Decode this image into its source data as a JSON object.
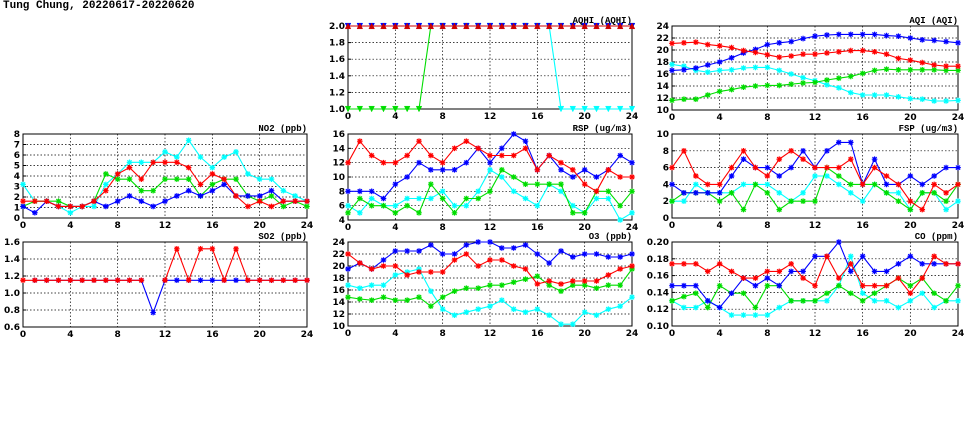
{
  "title": "Tung Chung, 20220617-20220620",
  "colors": {
    "red": "#ff0000",
    "blue": "#0000ff",
    "green": "#00dd00",
    "cyan": "#00ffff",
    "darkred": "#cc0000"
  },
  "chart_data": [
    {
      "id": "no2",
      "type": "line",
      "title": "NO2 (ppb)",
      "ylim": [
        0,
        8
      ],
      "yticks": [
        "0",
        "1",
        "2",
        "3",
        "4",
        "5",
        "6",
        "7",
        "8"
      ],
      "xlim": [
        0,
        24
      ],
      "xticks": [
        "0",
        "4",
        "8",
        "12",
        "16",
        "20",
        "24"
      ],
      "grid": true,
      "series": [
        {
          "color": "cyan",
          "x0": 0,
          "values": [
            3.2,
            1.6,
            1.6,
            1.1,
            0.5,
            1.1,
            1.1,
            3.2,
            4.2,
            5.3,
            5.3,
            5.3,
            6.3,
            5.8,
            7.4,
            5.8,
            4.8,
            5.8,
            6.3,
            4.2,
            3.7,
            3.7,
            2.6,
            2.1,
            1.6
          ]
        },
        {
          "color": "green",
          "x0": 0,
          "values": [
            1.1,
            1.6,
            1.6,
            1.6,
            1.1,
            1.1,
            1.6,
            4.2,
            3.7,
            3.7,
            2.6,
            2.6,
            3.7,
            3.7,
            3.7,
            2.1,
            3.2,
            3.7,
            3.7,
            2.1,
            1.6,
            2.1,
            1.1,
            1.6,
            1.1
          ]
        },
        {
          "color": "blue",
          "x0": 0,
          "values": [
            1.1,
            0.5,
            1.6,
            1.1,
            1.1,
            1.1,
            1.6,
            1.1,
            1.6,
            2.1,
            1.6,
            1.1,
            1.6,
            2.1,
            2.6,
            2.1,
            2.6,
            3.2,
            2.1,
            2.1,
            2.1,
            2.6,
            1.6,
            1.6,
            1.6
          ]
        },
        {
          "color": "red",
          "x0": 0,
          "values": [
            1.6,
            1.6,
            1.6,
            1.1,
            1.1,
            1.1,
            1.6,
            2.6,
            4.2,
            4.8,
            3.7,
            5.3,
            5.3,
            5.3,
            4.8,
            3.2,
            4.2,
            3.7,
            2.1,
            1.1,
            1.6,
            1.1,
            1.6,
            1.6,
            1.6
          ]
        }
      ]
    },
    {
      "id": "so2",
      "type": "line",
      "title": "SO2 (ppb)",
      "ylim": [
        0.6,
        1.6
      ],
      "yticks": [
        "0.6",
        "0.8",
        "1.0",
        "1.2",
        "1.4",
        "1.6"
      ],
      "xlim": [
        0,
        24
      ],
      "xticks": [
        "0",
        "4",
        "8",
        "12",
        "16",
        "20",
        "24"
      ],
      "grid": true,
      "series": [
        {
          "color": "blue",
          "x0": 1,
          "values": [
            1.15,
            1.15,
            1.15,
            1.15,
            1.15,
            1.15,
            1.15,
            1.15,
            1.15,
            1.15,
            0.77,
            1.15,
            1.15,
            1.15,
            1.15,
            1.15,
            1.15,
            1.15,
            1.15,
            1.15,
            1.15,
            1.15,
            1.15,
            1.15
          ]
        },
        {
          "color": "red",
          "x0": 0,
          "values": [
            1.15,
            1.15,
            1.15,
            1.15,
            1.15,
            1.15,
            1.15,
            1.15,
            1.15,
            1.15,
            1.15,
            null,
            1.15,
            1.52,
            1.15,
            1.52,
            1.52,
            1.15,
            1.52,
            1.15,
            1.15,
            1.15,
            1.15,
            1.15,
            1.15
          ]
        }
      ]
    },
    {
      "id": "aqhi",
      "type": "line",
      "title": "AQHI (AQHI)",
      "ylim": [
        1.0,
        2.0
      ],
      "yticks": [
        "1.0",
        "1.2",
        "1.4",
        "1.6",
        "1.8",
        "2.0"
      ],
      "xlim": [
        0,
        24
      ],
      "xticks": [
        "0",
        "4",
        "8",
        "12",
        "16",
        "20",
        "24"
      ],
      "grid": true,
      "series": [
        {
          "color": "green",
          "x0": 0,
          "values": [
            1,
            1,
            1,
            1,
            1,
            1,
            1,
            2,
            2,
            2,
            2,
            2,
            2,
            2,
            2,
            2,
            2,
            2,
            2,
            2,
            2,
            2,
            2,
            2,
            2
          ]
        },
        {
          "color": "cyan",
          "x0": 0,
          "values": [
            2,
            2,
            2,
            2,
            2,
            2,
            2,
            2,
            2,
            2,
            2,
            2,
            2,
            2,
            2,
            2,
            2,
            2,
            1,
            1,
            1,
            1,
            1,
            1,
            1
          ]
        },
        {
          "color": "blue",
          "x0": 0,
          "values": [
            2,
            2,
            2,
            2,
            2,
            2,
            2,
            2,
            2,
            2,
            2,
            2,
            2,
            2,
            2,
            2,
            2,
            2,
            2,
            2,
            2,
            2,
            2,
            2,
            2
          ]
        },
        {
          "color": "darkred",
          "x0": 0,
          "values": [
            2,
            2,
            2,
            2,
            2,
            2,
            2,
            2,
            2,
            2,
            2,
            2,
            2,
            2,
            2,
            2,
            2,
            2,
            2,
            2,
            2,
            2,
            2,
            2,
            2
          ]
        }
      ]
    },
    {
      "id": "rsp",
      "type": "line",
      "title": "RSP (ug/m3)",
      "ylim": [
        4,
        16
      ],
      "yticks": [
        "4",
        "6",
        "8",
        "10",
        "12",
        "14",
        "16"
      ],
      "xlim": [
        0,
        24
      ],
      "xticks": [
        "0",
        "4",
        "8",
        "12",
        "16",
        "20",
        "24"
      ],
      "grid": true,
      "series": [
        {
          "color": "cyan",
          "x0": 0,
          "values": [
            6,
            5,
            7,
            6,
            6,
            7,
            7,
            7,
            8,
            6,
            6,
            8,
            11,
            10,
            8,
            7,
            6,
            9,
            8,
            6,
            5,
            7,
            7,
            4,
            5
          ]
        },
        {
          "color": "green",
          "x0": 0,
          "values": [
            5,
            7,
            6,
            6,
            5,
            6,
            5,
            9,
            7,
            5,
            7,
            7,
            8,
            11,
            10,
            9,
            9,
            9,
            9,
            5,
            5,
            8,
            8,
            6,
            8
          ]
        },
        {
          "color": "blue",
          "x0": 0,
          "values": [
            8,
            8,
            8,
            7,
            9,
            10,
            12,
            11,
            11,
            11,
            12,
            14,
            12,
            14,
            16,
            15,
            11,
            13,
            11,
            10,
            11,
            10,
            11,
            13,
            12
          ]
        },
        {
          "color": "red",
          "x0": 0,
          "values": [
            12,
            15,
            13,
            12,
            12,
            13,
            15,
            13,
            12,
            14,
            15,
            14,
            13,
            13,
            13,
            14,
            11,
            13,
            12,
            11,
            9,
            8,
            11,
            10,
            10
          ]
        }
      ]
    },
    {
      "id": "o3",
      "type": "line",
      "title": "O3 (ppb)",
      "ylim": [
        10,
        24
      ],
      "yticks": [
        "10",
        "12",
        "14",
        "16",
        "18",
        "20",
        "22",
        "24"
      ],
      "xlim": [
        0,
        24
      ],
      "xticks": [
        "0",
        "4",
        "8",
        "12",
        "16",
        "20",
        "24"
      ],
      "grid": true,
      "series": [
        {
          "color": "cyan",
          "x0": 0,
          "values": [
            16.8,
            16.3,
            16.8,
            16.8,
            18.5,
            19,
            19.5,
            15.8,
            12.8,
            11.8,
            12.3,
            12.8,
            13.3,
            14.3,
            12.8,
            12.3,
            12.8,
            11.8,
            10.3,
            10.3,
            12.3,
            11.8,
            12.8,
            13.3,
            14.8
          ]
        },
        {
          "color": "green",
          "x0": 0,
          "values": [
            14.8,
            14.5,
            14.3,
            14.8,
            14.3,
            14.3,
            14.8,
            13.3,
            14.8,
            15.8,
            16.3,
            16.3,
            16.8,
            16.8,
            17.3,
            17.8,
            18.3,
            16.8,
            15.8,
            16.8,
            16.8,
            16.3,
            16.8,
            16.8,
            19.5
          ]
        },
        {
          "color": "blue",
          "x0": 0,
          "values": [
            19.5,
            20.5,
            19.5,
            21,
            22.5,
            22.5,
            22.5,
            23.5,
            22,
            22,
            23.5,
            24,
            24,
            23,
            23,
            23.5,
            22,
            20.5,
            22.5,
            21.5,
            22,
            22,
            21.5,
            21.5,
            22
          ]
        },
        {
          "color": "red",
          "x0": 0,
          "values": [
            22,
            20.5,
            19.5,
            20,
            20,
            18.5,
            19,
            19,
            19,
            21,
            22,
            20,
            21,
            21,
            20,
            19.5,
            17,
            17.5,
            17,
            17.5,
            17.5,
            17.5,
            18.5,
            19.5,
            20
          ]
        }
      ]
    },
    {
      "id": "aqi",
      "type": "line",
      "title": "AQI (AQI)",
      "ylim": [
        10,
        24
      ],
      "yticks": [
        "10",
        "12",
        "14",
        "16",
        "18",
        "20",
        "22",
        "24"
      ],
      "xlim": [
        0,
        24
      ],
      "xticks": [
        "0",
        "4",
        "8",
        "12",
        "16",
        "20",
        "24"
      ],
      "grid": true,
      "series": [
        {
          "color": "cyan",
          "x0": 0,
          "values": [
            17.6,
            17.3,
            16.6,
            16.3,
            16.6,
            16.7,
            17.0,
            17.1,
            17.1,
            16.6,
            16.0,
            15.4,
            14.9,
            14.2,
            13.7,
            12.9,
            12.5,
            12.5,
            12.5,
            12.2,
            11.9,
            11.8,
            11.5,
            11.5,
            11.6
          ]
        },
        {
          "color": "green",
          "x0": 0,
          "values": [
            11.6,
            11.8,
            11.8,
            12.5,
            13.1,
            13.4,
            13.8,
            14.0,
            14.1,
            14.1,
            14.3,
            14.5,
            14.6,
            15.0,
            15.3,
            15.6,
            16.1,
            16.6,
            16.8,
            16.7,
            16.7,
            16.7,
            16.7,
            16.6,
            16.6
          ]
        },
        {
          "color": "blue",
          "x0": 0,
          "values": [
            16.6,
            16.7,
            17.0,
            17.5,
            18.0,
            18.7,
            19.5,
            20.1,
            20.9,
            21.2,
            21.4,
            21.9,
            22.3,
            22.5,
            22.6,
            22.6,
            22.6,
            22.6,
            22.4,
            22.3,
            22.0,
            21.7,
            21.6,
            21.4,
            21.2
          ]
        },
        {
          "color": "red",
          "x0": 0,
          "values": [
            21.1,
            21.2,
            21.3,
            20.9,
            20.7,
            20.4,
            19.9,
            19.6,
            19.2,
            18.8,
            19.0,
            19.3,
            19.3,
            19.5,
            19.7,
            19.9,
            19.9,
            19.7,
            19.3,
            18.6,
            18.3,
            17.9,
            17.5,
            17.3,
            17.3
          ]
        }
      ]
    },
    {
      "id": "fsp",
      "type": "line",
      "title": "FSP (ug/m3)",
      "ylim": [
        0,
        10
      ],
      "yticks": [
        "0",
        "2",
        "4",
        "6",
        "8",
        "10"
      ],
      "xlim": [
        0,
        24
      ],
      "xticks": [
        "0",
        "4",
        "8",
        "12",
        "16",
        "20",
        "24"
      ],
      "grid": true,
      "series": [
        {
          "color": "cyan",
          "x0": 0,
          "values": [
            2,
            2,
            4,
            3,
            3,
            3,
            4,
            4,
            4,
            3,
            2,
            3,
            5,
            5,
            4,
            3,
            2,
            4,
            3,
            3,
            1,
            3,
            3,
            1,
            2
          ]
        },
        {
          "color": "green",
          "x0": 0,
          "values": [
            2,
            3,
            3,
            3,
            2,
            3,
            1,
            4,
            3,
            1,
            2,
            2,
            2,
            6,
            5,
            4,
            4,
            4,
            3,
            2,
            1,
            3,
            3,
            2,
            4
          ]
        },
        {
          "color": "blue",
          "x0": 0,
          "values": [
            4,
            3,
            3,
            3,
            3,
            5,
            7,
            6,
            6,
            5,
            6,
            8,
            6,
            8,
            9,
            9,
            4,
            7,
            4,
            4,
            5,
            4,
            5,
            6,
            6
          ]
        },
        {
          "color": "red",
          "x0": 0,
          "values": [
            6,
            8,
            5,
            4,
            4,
            6,
            8,
            6,
            5,
            7,
            8,
            7,
            6,
            6,
            6,
            7,
            4,
            6,
            5,
            4,
            2,
            1,
            4,
            3,
            4
          ]
        }
      ]
    },
    {
      "id": "co",
      "type": "line",
      "title": "CO (ppm)",
      "ylim": [
        0.1,
        0.2
      ],
      "yticks": [
        "0.10",
        "0.12",
        "0.14",
        "0.16",
        "0.18",
        "0.20"
      ],
      "xlim": [
        0,
        24
      ],
      "xticks": [
        "0",
        "4",
        "8",
        "12",
        "16",
        "20",
        "24"
      ],
      "grid": true,
      "series": [
        {
          "color": "cyan",
          "x0": 0,
          "values": [
            0.13,
            0.122,
            0.122,
            0.13,
            0.122,
            0.113,
            0.113,
            0.113,
            0.113,
            0.122,
            0.13,
            0.13,
            0.13,
            0.13,
            0.148,
            0.183,
            0.139,
            0.13,
            0.13,
            0.122,
            0.13,
            0.139,
            0.122,
            0.13,
            0.13
          ]
        },
        {
          "color": "green",
          "x0": 0,
          "values": [
            0.13,
            0.135,
            0.139,
            0.122,
            0.148,
            0.139,
            0.139,
            0.122,
            0.148,
            0.148,
            0.13,
            0.13,
            0.13,
            0.139,
            0.148,
            0.139,
            0.13,
            0.139,
            0.148,
            0.157,
            0.148,
            0.157,
            0.139,
            0.13,
            0.148
          ]
        },
        {
          "color": "blue",
          "x0": 0,
          "values": [
            0.148,
            0.148,
            0.148,
            0.13,
            0.122,
            0.139,
            0.157,
            0.148,
            0.157,
            0.148,
            0.165,
            0.165,
            0.183,
            0.183,
            0.2,
            0.165,
            0.183,
            0.165,
            0.165,
            0.174,
            0.183,
            0.174,
            0.174,
            0.174,
            0.174
          ]
        },
        {
          "color": "red",
          "x0": 0,
          "values": [
            0.174,
            0.174,
            0.174,
            0.165,
            0.174,
            0.165,
            0.157,
            0.157,
            0.165,
            0.165,
            0.174,
            0.157,
            0.148,
            0.183,
            0.157,
            0.174,
            0.148,
            0.148,
            0.148,
            0.157,
            0.139,
            0.157,
            0.183,
            0.174,
            0.174
          ]
        }
      ]
    }
  ]
}
